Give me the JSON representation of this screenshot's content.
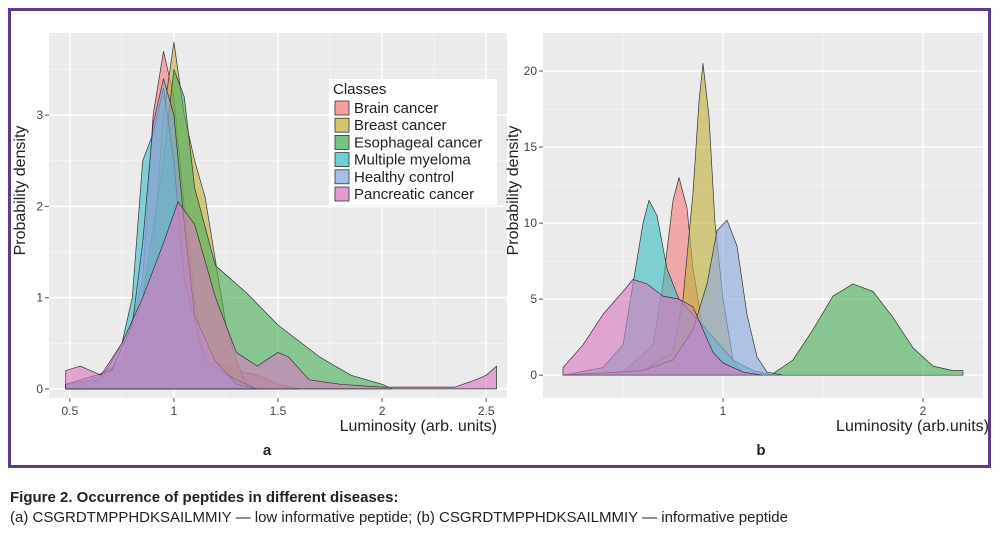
{
  "caption": {
    "title": "Figure 2. Occurrence of peptides in different diseases:",
    "subtitle": "(a) CSGRDTMPPHDKSAILMMIY — low informative peptide; (b) CSGRDTMPPHDKSAILMMIY — informative peptide"
  },
  "colors": {
    "Brain cancer": "#f37e7e",
    "Breast cancer": "#c2b23c",
    "Esophageal cancer": "#4aaf5a",
    "Multiple myeloma": "#3fbfc3",
    "Healthy control": "#8aa9e0",
    "Pancreatic cancer": "#d97ac0"
  },
  "chart_data": [
    {
      "panel": "a",
      "type": "area",
      "xlabel": "Luminosity (arb. units)",
      "ylabel": "Probability density",
      "xlim": [
        0.4,
        2.6
      ],
      "ylim": [
        -0.1,
        3.9
      ],
      "xticks": [
        0.5,
        1.0,
        1.5,
        2.0,
        2.5
      ],
      "yticks": [
        0,
        1,
        2,
        3
      ],
      "grid": true,
      "legend": {
        "title": "Classes",
        "position": "top-right"
      },
      "series": [
        {
          "name": "Brain cancer",
          "points": [
            [
              0.48,
              0.05
            ],
            [
              0.6,
              0.05
            ],
            [
              0.75,
              0.3
            ],
            [
              0.85,
              1.2
            ],
            [
              0.9,
              3.0
            ],
            [
              0.95,
              3.7
            ],
            [
              1.0,
              3.2
            ],
            [
              1.05,
              2.0
            ],
            [
              1.1,
              1.0
            ],
            [
              1.15,
              0.35
            ],
            [
              1.3,
              0.2
            ],
            [
              1.4,
              0.15
            ],
            [
              1.5,
              0.05
            ],
            [
              1.6,
              0.0
            ]
          ]
        },
        {
          "name": "Breast cancer",
          "points": [
            [
              0.48,
              0.0
            ],
            [
              0.7,
              0.1
            ],
            [
              0.8,
              0.5
            ],
            [
              0.9,
              1.5
            ],
            [
              0.95,
              3.0
            ],
            [
              1.0,
              3.8
            ],
            [
              1.05,
              3.0
            ],
            [
              1.1,
              2.5
            ],
            [
              1.15,
              2.1
            ],
            [
              1.2,
              1.4
            ],
            [
              1.25,
              0.7
            ],
            [
              1.3,
              0.3
            ],
            [
              1.35,
              0.05
            ],
            [
              1.4,
              0.0
            ]
          ]
        },
        {
          "name": "Esophageal cancer",
          "points": [
            [
              0.48,
              0.05
            ],
            [
              0.6,
              0.1
            ],
            [
              0.75,
              0.3
            ],
            [
              0.85,
              1.0
            ],
            [
              0.95,
              2.5
            ],
            [
              1.0,
              3.5
            ],
            [
              1.05,
              3.2
            ],
            [
              1.1,
              2.2
            ],
            [
              1.2,
              1.35
            ],
            [
              1.35,
              1.05
            ],
            [
              1.5,
              0.7
            ],
            [
              1.7,
              0.35
            ],
            [
              1.85,
              0.15
            ],
            [
              2.0,
              0.05
            ],
            [
              2.05,
              0.0
            ]
          ]
        },
        {
          "name": "Multiple myeloma",
          "points": [
            [
              0.48,
              0.05
            ],
            [
              0.65,
              0.1
            ],
            [
              0.75,
              0.5
            ],
            [
              0.8,
              1.0
            ],
            [
              0.85,
              2.5
            ],
            [
              0.9,
              2.8
            ],
            [
              0.95,
              3.3
            ],
            [
              1.0,
              2.5
            ],
            [
              1.05,
              1.2
            ],
            [
              1.15,
              0.3
            ],
            [
              1.3,
              0.1
            ],
            [
              1.4,
              0.0
            ]
          ]
        },
        {
          "name": "Healthy control",
          "points": [
            [
              0.48,
              0.05
            ],
            [
              0.7,
              0.2
            ],
            [
              0.8,
              0.7
            ],
            [
              0.85,
              1.6
            ],
            [
              0.9,
              2.9
            ],
            [
              0.95,
              3.4
            ],
            [
              1.0,
              3.0
            ],
            [
              1.05,
              1.8
            ],
            [
              1.1,
              0.8
            ],
            [
              1.2,
              0.3
            ],
            [
              1.3,
              0.05
            ],
            [
              1.4,
              0.0
            ]
          ]
        },
        {
          "name": "Pancreatic cancer",
          "points": [
            [
              0.48,
              0.2
            ],
            [
              0.55,
              0.25
            ],
            [
              0.65,
              0.15
            ],
            [
              0.75,
              0.5
            ],
            [
              0.85,
              1.0
            ],
            [
              0.95,
              1.6
            ],
            [
              1.02,
              2.05
            ],
            [
              1.1,
              1.8
            ],
            [
              1.2,
              1.0
            ],
            [
              1.3,
              0.4
            ],
            [
              1.4,
              0.25
            ],
            [
              1.5,
              0.4
            ],
            [
              1.55,
              0.35
            ],
            [
              1.65,
              0.1
            ],
            [
              1.8,
              0.05
            ],
            [
              2.0,
              0.02
            ],
            [
              2.35,
              0.02
            ],
            [
              2.45,
              0.1
            ],
            [
              2.5,
              0.15
            ],
            [
              2.55,
              0.25
            ]
          ]
        }
      ]
    },
    {
      "panel": "b",
      "type": "area",
      "xlabel": "Luminosity (arb.units)",
      "ylabel": "Probability density",
      "xlim": [
        0.1,
        2.3
      ],
      "ylim": [
        -1.5,
        22.5
      ],
      "xticks": [
        1,
        2
      ],
      "yticks": [
        0,
        5,
        10,
        15,
        20
      ],
      "grid": true,
      "series": [
        {
          "name": "Brain cancer",
          "points": [
            [
              0.2,
              0.0
            ],
            [
              0.5,
              0.2
            ],
            [
              0.65,
              2.0
            ],
            [
              0.7,
              6.0
            ],
            [
              0.75,
              11.5
            ],
            [
              0.78,
              13.0
            ],
            [
              0.82,
              11.0
            ],
            [
              0.85,
              7.0
            ],
            [
              0.9,
              3.0
            ],
            [
              0.95,
              1.5
            ],
            [
              1.0,
              0.5
            ],
            [
              1.1,
              0.05
            ]
          ]
        },
        {
          "name": "Breast cancer",
          "points": [
            [
              0.2,
              0.0
            ],
            [
              0.6,
              0.3
            ],
            [
              0.75,
              1.5
            ],
            [
              0.8,
              5.0
            ],
            [
              0.85,
              12.0
            ],
            [
              0.88,
              18.0
            ],
            [
              0.9,
              20.5
            ],
            [
              0.93,
              17.0
            ],
            [
              0.96,
              10.0
            ],
            [
              1.0,
              5.0
            ],
            [
              1.05,
              1.0
            ],
            [
              1.1,
              0.1
            ],
            [
              1.2,
              0.0
            ]
          ]
        },
        {
          "name": "Esophageal cancer",
          "points": [
            [
              1.25,
              0.1
            ],
            [
              1.35,
              1.0
            ],
            [
              1.45,
              3.0
            ],
            [
              1.55,
              5.2
            ],
            [
              1.65,
              6.0
            ],
            [
              1.75,
              5.5
            ],
            [
              1.85,
              3.8
            ],
            [
              1.95,
              1.8
            ],
            [
              2.05,
              0.6
            ],
            [
              2.15,
              0.3
            ],
            [
              2.2,
              0.3
            ]
          ]
        },
        {
          "name": "Multiple myeloma",
          "points": [
            [
              0.2,
              0.0
            ],
            [
              0.4,
              0.5
            ],
            [
              0.5,
              2.0
            ],
            [
              0.55,
              6.0
            ],
            [
              0.6,
              10.0
            ],
            [
              0.63,
              11.5
            ],
            [
              0.67,
              10.5
            ],
            [
              0.72,
              7.0
            ],
            [
              0.78,
              5.0
            ],
            [
              0.85,
              4.0
            ],
            [
              0.95,
              2.5
            ],
            [
              1.05,
              1.0
            ],
            [
              1.15,
              0.3
            ],
            [
              1.25,
              0.0
            ]
          ]
        },
        {
          "name": "Healthy control",
          "points": [
            [
              0.2,
              0.0
            ],
            [
              0.6,
              0.3
            ],
            [
              0.75,
              1.0
            ],
            [
              0.85,
              3.0
            ],
            [
              0.92,
              6.0
            ],
            [
              0.97,
              9.5
            ],
            [
              1.02,
              10.2
            ],
            [
              1.07,
              8.5
            ],
            [
              1.12,
              4.0
            ],
            [
              1.17,
              1.2
            ],
            [
              1.22,
              0.2
            ],
            [
              1.3,
              0.0
            ]
          ]
        },
        {
          "name": "Pancreatic cancer",
          "points": [
            [
              0.2,
              0.5
            ],
            [
              0.3,
              2.0
            ],
            [
              0.4,
              4.0
            ],
            [
              0.5,
              5.5
            ],
            [
              0.55,
              6.3
            ],
            [
              0.62,
              6.0
            ],
            [
              0.7,
              5.2
            ],
            [
              0.78,
              5.0
            ],
            [
              0.85,
              4.5
            ],
            [
              0.9,
              3.0
            ],
            [
              0.95,
              1.5
            ],
            [
              1.0,
              0.8
            ],
            [
              1.1,
              0.2
            ],
            [
              1.2,
              0.0
            ]
          ]
        }
      ]
    }
  ],
  "panels": {
    "a": {
      "label": "a"
    },
    "b": {
      "label": "b"
    }
  }
}
